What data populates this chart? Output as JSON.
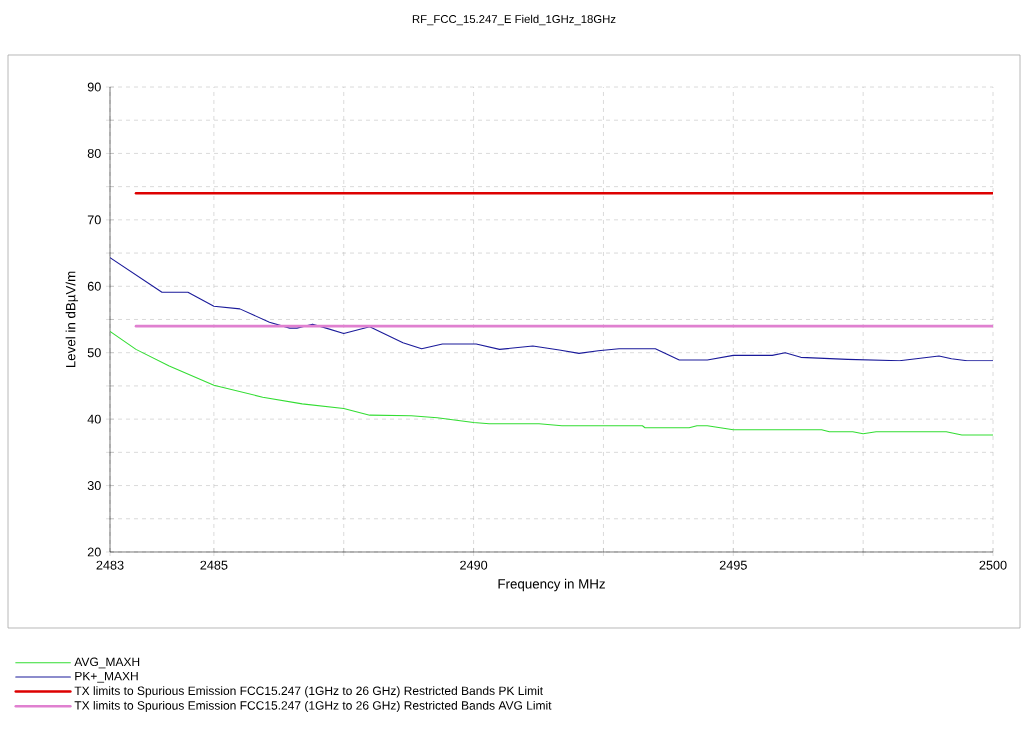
{
  "chart_data": {
    "type": "line",
    "title": "RF_FCC_15.247_E Field_1GHz_18GHz",
    "xlabel": "Frequency in MHz",
    "ylabel": "Level in dBµV/m",
    "xlim": [
      2483,
      2500
    ],
    "ylim": [
      20,
      90
    ],
    "xticks": [
      2483,
      2485,
      {
        "value": 2487.5,
        "label": null
      },
      2490,
      {
        "value": 2492.5,
        "label": null
      },
      2495,
      {
        "value": 2497.5,
        "label": null
      },
      2500
    ],
    "yticks": [
      20,
      {
        "value": 25,
        "label": null
      },
      30,
      {
        "value": 35,
        "label": null
      },
      40,
      {
        "value": 45,
        "label": null
      },
      50,
      {
        "value": 55,
        "label": null
      },
      60,
      {
        "value": 65,
        "label": null
      },
      70,
      {
        "value": 75,
        "label": null
      },
      80,
      {
        "value": 85,
        "label": null
      },
      90
    ],
    "grid": true,
    "legend": "bottom left",
    "line_style": "solid",
    "marker": "none",
    "series": [
      {
        "name": "AVG_MAXH",
        "color": "#33dd33",
        "x": [
          2483,
          2483.5,
          2484.14,
          2485,
          2485.94,
          2486.7,
          2487.5,
          2488,
          2488.8,
          2489.3,
          2490,
          2490.3,
          2491.26,
          2491.7,
          2493.25,
          2493.3,
          2494.15,
          2494.3,
          2494.5,
          2495,
          2496.7,
          2496.85,
          2497.3,
          2497.5,
          2497.75,
          2499.1,
          2499.4,
          2500
        ],
        "values": [
          53.2,
          50.5,
          48,
          45.1,
          43.3,
          42.3,
          41.6,
          40.6,
          40.5,
          40.2,
          39.5,
          39.3,
          39.3,
          39,
          39,
          38.7,
          38.7,
          39,
          39,
          38.4,
          38.4,
          38.1,
          38.1,
          37.8,
          38.1,
          38.1,
          37.6,
          37.6
        ]
      },
      {
        "name": "PK+_MAXH",
        "color": "#1a1a9a",
        "x": [
          2483,
          2484,
          2484.5,
          2485,
          2485.5,
          2486.07,
          2486.46,
          2486.6,
          2486.9,
          2487.16,
          2487.5,
          2488,
          2488.64,
          2489,
          2489.4,
          2490.05,
          2490.5,
          2491.14,
          2491.65,
          2492.03,
          2492.4,
          2492.8,
          2493.5,
          2493.96,
          2494.5,
          2495,
          2495.75,
          2496,
          2496.3,
          2497.2,
          2498.2,
          2498.96,
          2499.2,
          2499.5,
          2500
        ],
        "values": [
          64.3,
          59.1,
          59.1,
          57,
          56.6,
          54.6,
          53.7,
          53.7,
          54.3,
          53.7,
          52.9,
          53.9,
          51.5,
          50.6,
          51.3,
          51.3,
          50.5,
          51,
          50.4,
          49.9,
          50.3,
          50.6,
          50.6,
          48.9,
          48.9,
          49.6,
          49.6,
          50,
          49.3,
          49,
          48.8,
          49.5,
          49.1,
          48.8,
          48.8
        ]
      },
      {
        "name": "TX limits to Spurious Emission FCC15.247 (1GHz to 26 GHz) Restricted Bands PK Limit",
        "color": "#dd0000",
        "x": [
          2483.5,
          2500
        ],
        "values": [
          74,
          74
        ]
      },
      {
        "name": "TX limits to Spurious Emission FCC15.247 (1GHz to 26 GHz) Restricted Bands AVG Limit",
        "color": "#e080d0",
        "x": [
          2483.5,
          2500
        ],
        "values": [
          54,
          54
        ]
      }
    ]
  }
}
